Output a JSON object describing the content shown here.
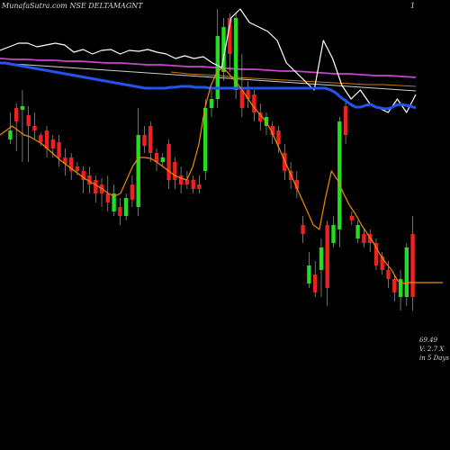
{
  "chart_data": {
    "type": "candlestick",
    "title": "MunafaSutra.com NSE DELTAMAGNT",
    "top_right_label": "1",
    "side_labels": [
      "69.49",
      "V: 2.7 X",
      "in 5 Days"
    ],
    "colors": {
      "background": "#000000",
      "up": "#22dd22",
      "down": "#ee2020",
      "wick": "#bbbbbb",
      "ema_short": "#f08c00",
      "volume_line": "#ffffff",
      "sma_long": "#2255ee",
      "sma_slow": "#cc44cc",
      "sma_mid": "#d0d0d0",
      "sma_orange": "#cc7a00"
    },
    "candles": [
      [
        145,
        155,
        125,
        160,
        "up"
      ],
      [
        120,
        135,
        115,
        168,
        "down"
      ],
      [
        118,
        122,
        100,
        180,
        "up"
      ],
      [
        128,
        140,
        118,
        180,
        "down"
      ],
      [
        140,
        145,
        125,
        155,
        "down"
      ],
      [
        150,
        158,
        148,
        162,
        "down"
      ],
      [
        145,
        165,
        140,
        175,
        "down"
      ],
      [
        155,
        165,
        150,
        175,
        "down"
      ],
      [
        158,
        175,
        150,
        185,
        "down"
      ],
      [
        175,
        182,
        165,
        195,
        "down"
      ],
      [
        175,
        190,
        170,
        200,
        "down"
      ],
      [
        185,
        190,
        180,
        195,
        "down"
      ],
      [
        190,
        200,
        185,
        215,
        "down"
      ],
      [
        195,
        205,
        185,
        215,
        "down"
      ],
      [
        200,
        215,
        195,
        225,
        "down"
      ],
      [
        205,
        215,
        198,
        230,
        "down"
      ],
      [
        215,
        225,
        195,
        235,
        "down"
      ],
      [
        215,
        235,
        205,
        240,
        "up"
      ],
      [
        230,
        240,
        220,
        250,
        "down"
      ],
      [
        220,
        240,
        215,
        245,
        "up"
      ],
      [
        205,
        222,
        195,
        230,
        "down"
      ],
      [
        150,
        230,
        120,
        240,
        "up"
      ],
      [
        150,
        162,
        140,
        170,
        "down"
      ],
      [
        140,
        170,
        135,
        180,
        "down"
      ],
      [
        170,
        180,
        165,
        190,
        "down"
      ],
      [
        175,
        180,
        170,
        185,
        "up"
      ],
      [
        160,
        200,
        155,
        210,
        "down"
      ],
      [
        180,
        200,
        175,
        210,
        "down"
      ],
      [
        195,
        205,
        185,
        215,
        "down"
      ],
      [
        200,
        205,
        190,
        210,
        "down"
      ],
      [
        200,
        210,
        195,
        215,
        "down"
      ],
      [
        205,
        210,
        195,
        215,
        "down"
      ],
      [
        120,
        190,
        110,
        200,
        "up"
      ],
      [
        110,
        120,
        100,
        130,
        "up"
      ],
      [
        40,
        110,
        10,
        120,
        "up"
      ],
      [
        30,
        80,
        20,
        90,
        "up"
      ],
      [
        20,
        60,
        15,
        80,
        "down"
      ],
      [
        20,
        100,
        15,
        110,
        "up"
      ],
      [
        100,
        120,
        60,
        130,
        "down"
      ],
      [
        100,
        110,
        90,
        120,
        "down"
      ],
      [
        105,
        125,
        100,
        135,
        "down"
      ],
      [
        125,
        135,
        115,
        145,
        "down"
      ],
      [
        130,
        140,
        125,
        150,
        "up"
      ],
      [
        140,
        150,
        135,
        160,
        "down"
      ],
      [
        145,
        160,
        140,
        170,
        "down"
      ],
      [
        170,
        190,
        160,
        200,
        "down"
      ],
      [
        190,
        200,
        180,
        210,
        "down"
      ],
      [
        200,
        210,
        190,
        220,
        "down"
      ],
      [
        250,
        260,
        240,
        270,
        "down"
      ],
      [
        295,
        315,
        280,
        320,
        "up"
      ],
      [
        305,
        325,
        290,
        330,
        "down"
      ],
      [
        275,
        300,
        265,
        330,
        "up"
      ],
      [
        250,
        320,
        245,
        340,
        "down"
      ],
      [
        250,
        270,
        240,
        275,
        "up"
      ],
      [
        135,
        255,
        130,
        275,
        "up"
      ],
      [
        118,
        150,
        110,
        160,
        "down"
      ],
      [
        240,
        245,
        235,
        250,
        "down"
      ],
      [
        250,
        265,
        245,
        270,
        "up"
      ],
      [
        260,
        270,
        255,
        275,
        "down"
      ],
      [
        260,
        270,
        255,
        280,
        "down"
      ],
      [
        270,
        295,
        265,
        300,
        "down"
      ],
      [
        285,
        300,
        280,
        305,
        "down"
      ],
      [
        300,
        310,
        290,
        320,
        "down"
      ],
      [
        310,
        325,
        305,
        335,
        "down"
      ],
      [
        310,
        330,
        300,
        345,
        "up"
      ],
      [
        275,
        330,
        270,
        340,
        "up"
      ],
      [
        260,
        330,
        240,
        345,
        "down"
      ]
    ],
    "ema_short": [
      150,
      145,
      140,
      145,
      150,
      152,
      156,
      160,
      166,
      172,
      178,
      183,
      188,
      193,
      198,
      202,
      206,
      210,
      215,
      218,
      215,
      200,
      185,
      175,
      175,
      176,
      180,
      185,
      190,
      195,
      198,
      200,
      185,
      160,
      120,
      95,
      80,
      75,
      82,
      90,
      98,
      108,
      118,
      126,
      134,
      145,
      160,
      175,
      190,
      205,
      220,
      235,
      250,
      255,
      220,
      190,
      200,
      215,
      228,
      238,
      250,
      260,
      270,
      282,
      292,
      300,
      312,
      315,
      314,
      314
    ],
    "sma_long": [
      70,
      70,
      71,
      72,
      73,
      74,
      75,
      76,
      77,
      78,
      79,
      80,
      81,
      82,
      83,
      84,
      85,
      86,
      87,
      88,
      89,
      90,
      91,
      92,
      93,
      94,
      95,
      96,
      97,
      98,
      98,
      98,
      98,
      98,
      97,
      97,
      96,
      96,
      96,
      97,
      97,
      97,
      98,
      98,
      98,
      98,
      98,
      98,
      98,
      98,
      98,
      98,
      98,
      98,
      98,
      98,
      98,
      98,
      98,
      98,
      98,
      98,
      98,
      98,
      98,
      98,
      100,
      103,
      108,
      112,
      116,
      119,
      119,
      117,
      116,
      119,
      120,
      121,
      120,
      117,
      116,
      117,
      118,
      120
    ],
    "volume_line": [
      56,
      52,
      48,
      48,
      52,
      50,
      48,
      50,
      58,
      55,
      60,
      56,
      55,
      60,
      56,
      57,
      55,
      58,
      60,
      65,
      62,
      65,
      63,
      70,
      75,
      20,
      10,
      25,
      30,
      35,
      45,
      70,
      80,
      90,
      100,
      45,
      65,
      95,
      110,
      100,
      115,
      120,
      125,
      110,
      125,
      105
    ],
    "sma_slow": [
      65,
      66,
      66,
      67,
      67,
      68,
      68,
      69,
      70,
      70,
      71,
      72,
      72,
      73,
      74,
      74,
      75,
      76,
      77,
      77,
      78,
      79,
      79,
      80,
      81,
      82,
      82,
      83,
      84,
      84,
      85,
      86
    ],
    "sma_mid": [
      70,
      71,
      72,
      73,
      74,
      75,
      76,
      77,
      78,
      79,
      80,
      81,
      82,
      83,
      84,
      85,
      86,
      87,
      88,
      89,
      90,
      91,
      92,
      93,
      94,
      95,
      96,
      97,
      98,
      99,
      100,
      101
    ],
    "sma_orange": [
      80,
      82,
      83,
      84,
      86,
      87,
      88,
      89,
      90,
      91,
      92,
      93,
      94,
      94,
      95,
      96
    ]
  }
}
